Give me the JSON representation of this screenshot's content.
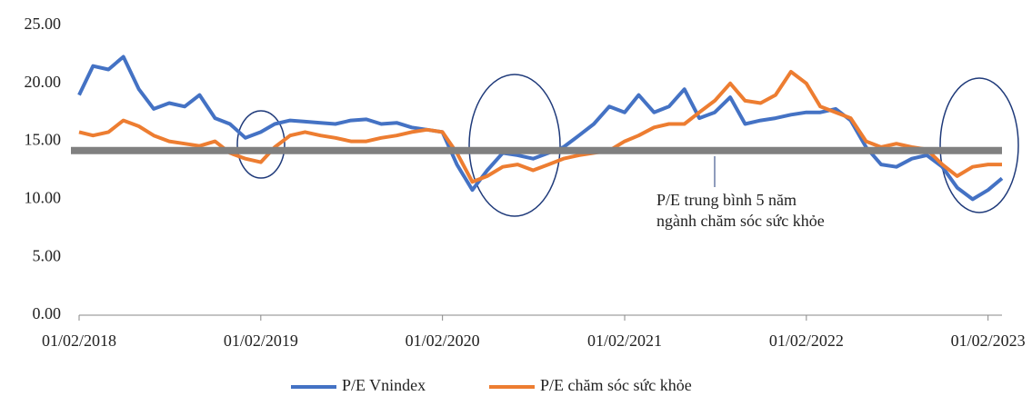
{
  "chart_data": {
    "type": "line",
    "x": [
      "01/02/2018",
      "01/03/2018",
      "01/04/2018",
      "01/05/2018",
      "01/06/2018",
      "01/07/2018",
      "01/08/2018",
      "01/09/2018",
      "01/10/2018",
      "01/11/2018",
      "01/12/2018",
      "01/01/2019",
      "01/02/2019",
      "01/03/2019",
      "01/04/2019",
      "01/05/2019",
      "01/06/2019",
      "01/07/2019",
      "01/08/2019",
      "01/09/2019",
      "01/10/2019",
      "01/11/2019",
      "01/12/2019",
      "01/01/2020",
      "01/02/2020",
      "01/03/2020",
      "01/04/2020",
      "01/05/2020",
      "01/06/2020",
      "01/07/2020",
      "01/08/2020",
      "01/09/2020",
      "01/10/2020",
      "01/11/2020",
      "01/12/2020",
      "01/01/2021",
      "01/02/2021",
      "01/03/2021",
      "01/04/2021",
      "01/05/2021",
      "01/06/2021",
      "01/07/2021",
      "01/08/2021",
      "01/09/2021",
      "01/10/2021",
      "01/11/2021",
      "01/12/2021",
      "01/01/2022",
      "01/02/2022",
      "01/03/2022",
      "01/04/2022",
      "01/05/2022",
      "01/06/2022",
      "01/07/2022",
      "01/08/2022",
      "01/09/2022",
      "01/10/2022",
      "01/11/2022",
      "01/12/2022",
      "01/01/2023",
      "01/02/2023",
      "01/03/2023"
    ],
    "series": [
      {
        "name": "P/E Vnindex",
        "color": "#4472c4",
        "values": [
          19.0,
          21.5,
          21.2,
          22.3,
          19.5,
          17.8,
          18.3,
          18.0,
          19.0,
          17.0,
          16.5,
          15.3,
          15.8,
          16.5,
          16.8,
          16.7,
          16.6,
          16.5,
          16.8,
          16.9,
          16.5,
          16.6,
          16.2,
          16.0,
          15.8,
          13.0,
          10.8,
          12.5,
          14.0,
          13.8,
          13.5,
          14.0,
          14.5,
          15.5,
          16.5,
          18.0,
          17.5,
          19.0,
          17.5,
          18.0,
          19.5,
          17.0,
          17.5,
          18.8,
          16.5,
          16.8,
          17.0,
          17.3,
          17.5,
          17.5,
          17.8,
          16.8,
          14.5,
          13.0,
          12.8,
          13.5,
          13.8,
          12.8,
          11.0,
          10.0,
          10.8,
          11.8
        ]
      },
      {
        "name": "P/E chăm sóc sức khỏe",
        "color": "#ed7d31",
        "values": [
          15.8,
          15.5,
          15.8,
          16.8,
          16.3,
          15.5,
          15.0,
          14.8,
          14.6,
          15.0,
          14.0,
          13.5,
          13.2,
          14.5,
          15.5,
          15.8,
          15.5,
          15.3,
          15.0,
          15.0,
          15.3,
          15.5,
          15.8,
          16.0,
          15.8,
          14.0,
          11.5,
          12.0,
          12.8,
          13.0,
          12.5,
          13.0,
          13.5,
          13.8,
          14.0,
          14.2,
          15.0,
          15.5,
          16.2,
          16.5,
          16.5,
          17.5,
          18.5,
          20.0,
          18.5,
          18.3,
          19.0,
          21.0,
          20.0,
          18.0,
          17.5,
          17.0,
          15.0,
          14.5,
          14.8,
          14.5,
          14.3,
          13.0,
          12.0,
          12.8,
          13.0,
          13.0
        ]
      }
    ],
    "xlim": [
      "01/02/2018",
      "01/03/2023"
    ],
    "xticks": [
      "01/02/2018",
      "01/02/2019",
      "01/02/2020",
      "01/02/2021",
      "01/02/2022",
      "01/02/2023"
    ],
    "ylim": [
      0,
      25
    ],
    "yticks": [
      {
        "value": 0,
        "label": "0.00"
      },
      {
        "value": 5,
        "label": "5.00"
      },
      {
        "value": 10,
        "label": "10.00"
      },
      {
        "value": 15,
        "label": "15.00"
      },
      {
        "value": 20,
        "label": "20.00"
      },
      {
        "value": 25,
        "label": "25.00"
      }
    ],
    "reference_line": {
      "value": 14.2,
      "color": "#808080"
    },
    "annotation": [
      "P/E trung bình 5 năm",
      "ngành chăm sóc sức khỏe"
    ],
    "legend": "bottom"
  }
}
